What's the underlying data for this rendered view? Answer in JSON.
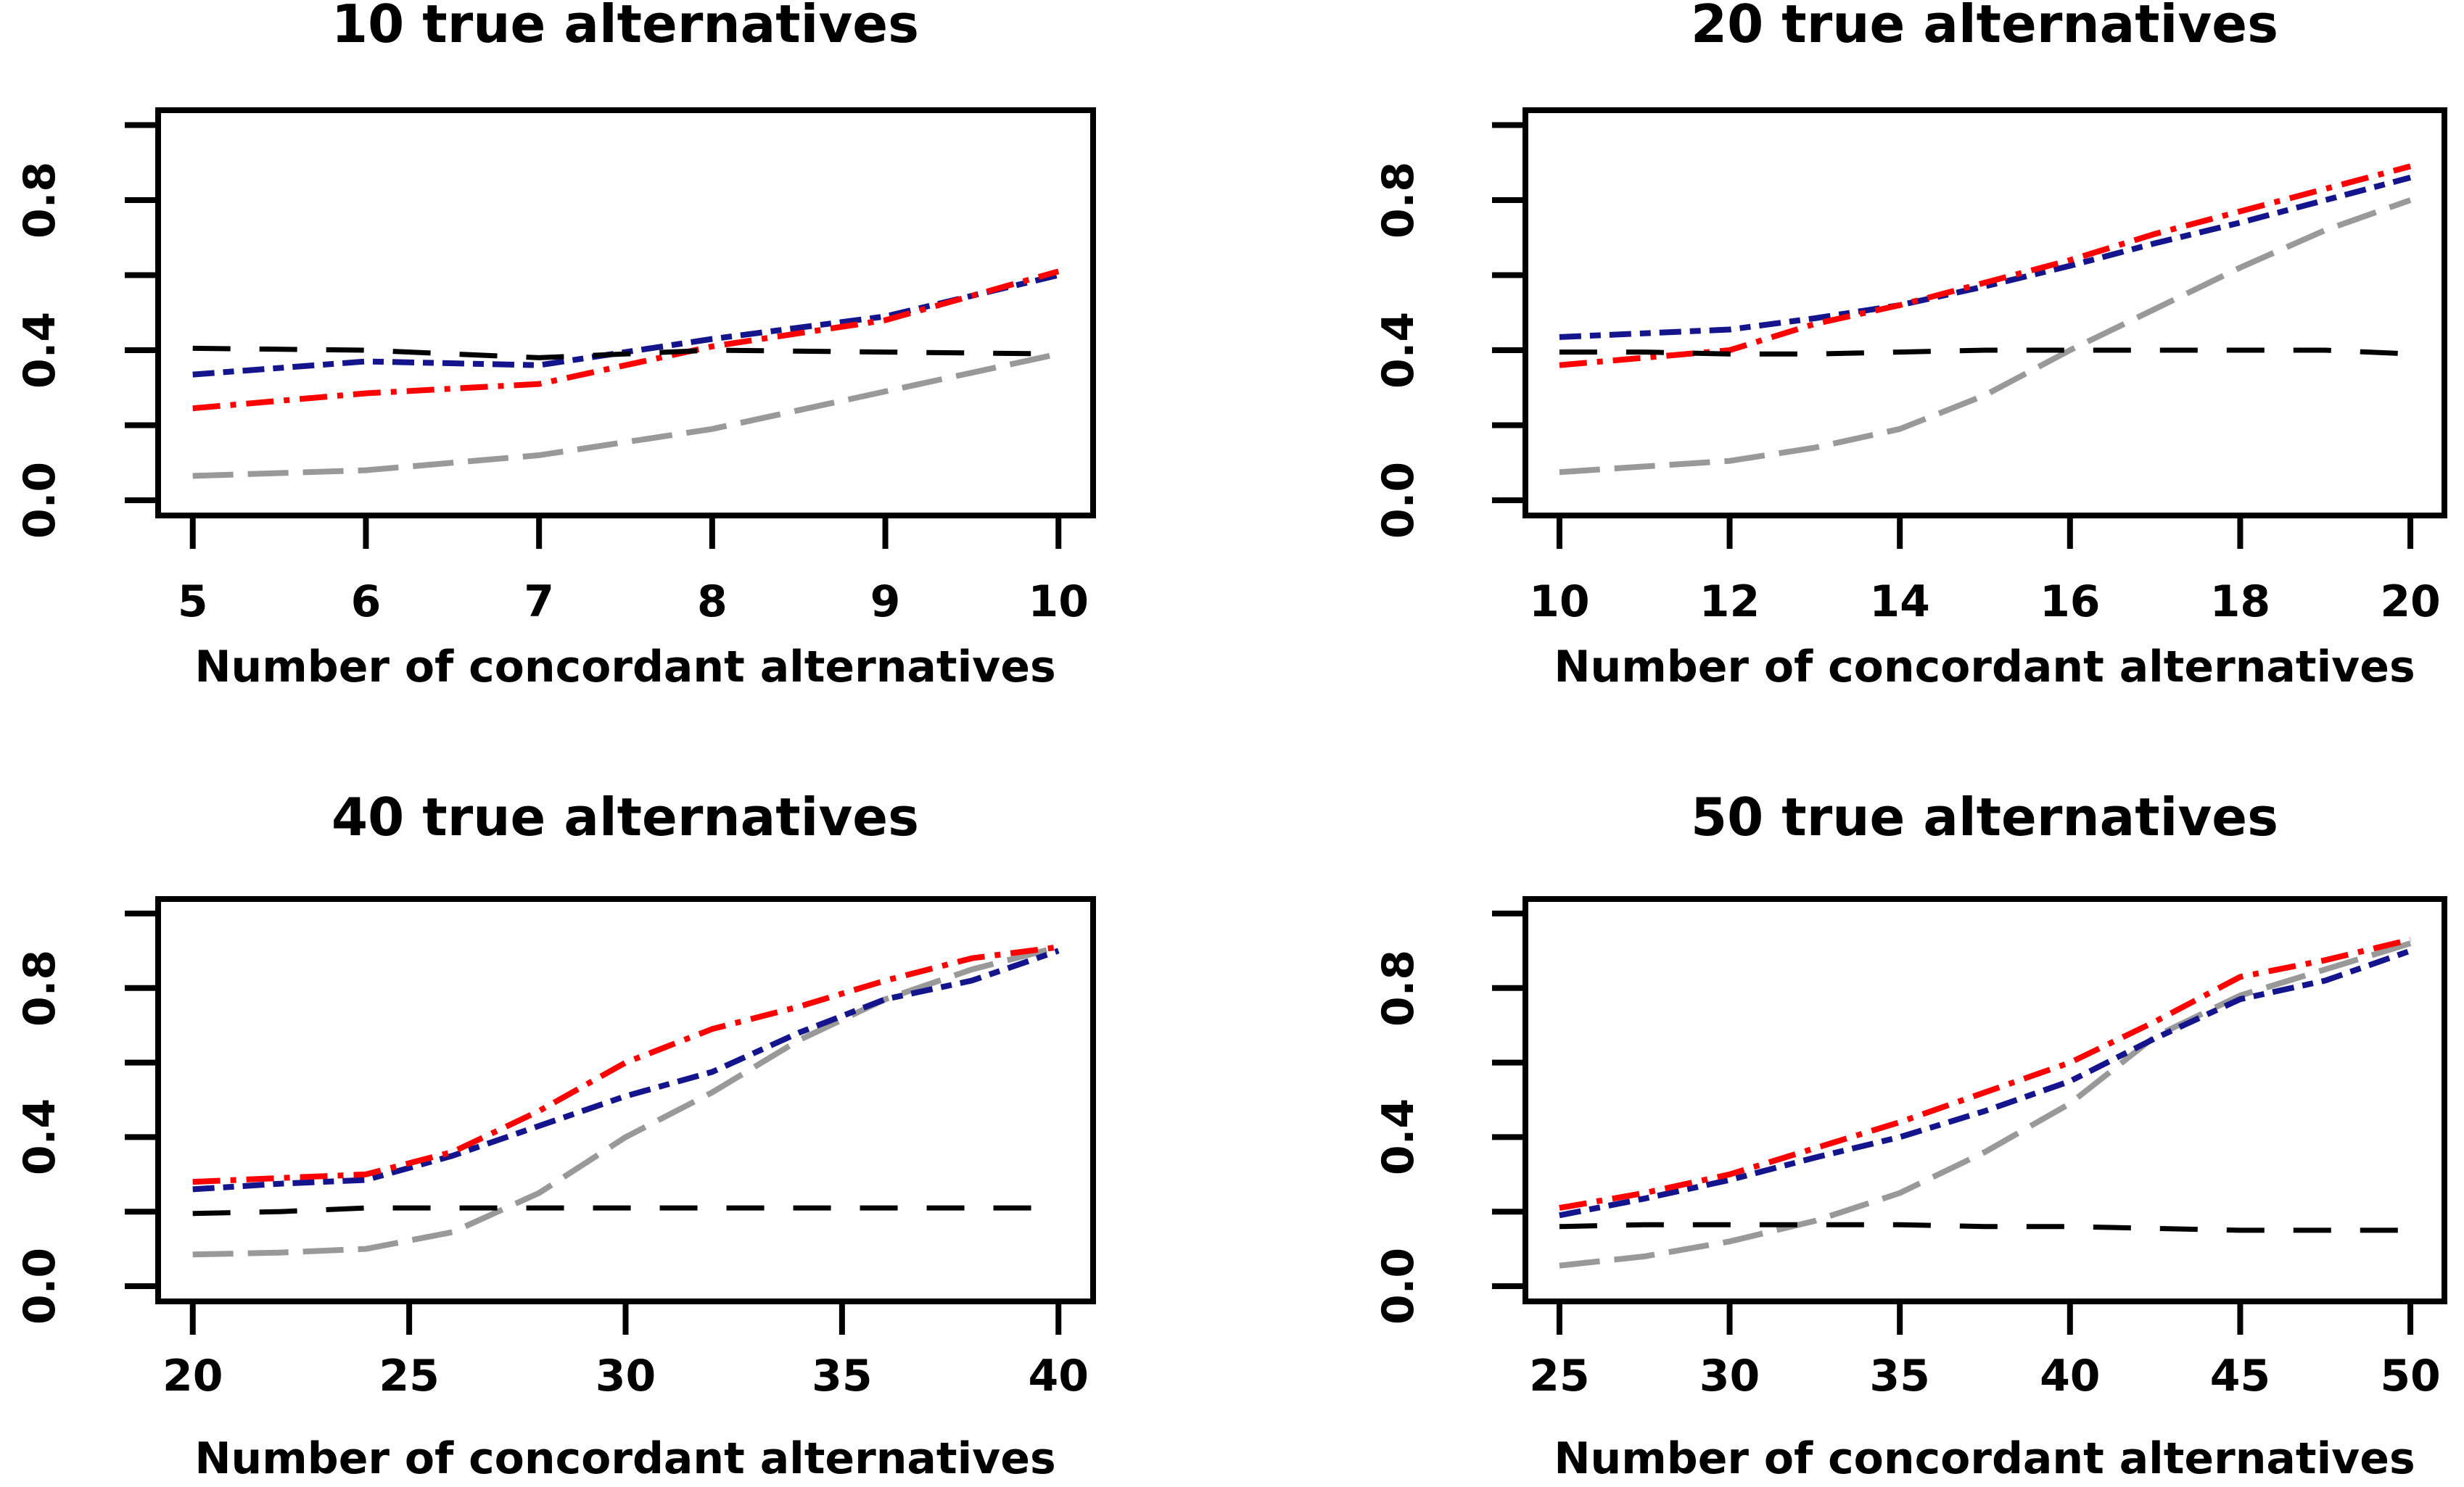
{
  "figure": {
    "background": "#FFFFFF",
    "x_axis_label": "Number of concordant alternatives",
    "y_tick_labels": [
      "0.0",
      "0.4",
      "0.8"
    ],
    "colors": {
      "red": "#FF0000",
      "navy": "#14148C",
      "gray": "#999999",
      "black": "#000000"
    }
  },
  "chart_data": [
    {
      "type": "line",
      "title": "10 true alternatives",
      "xlabel": "Number of concordant alternatives",
      "ylabel": "",
      "xlim": [
        5,
        10
      ],
      "ylim": [
        0,
        1
      ],
      "xticks": [
        5,
        6,
        7,
        8,
        9,
        10
      ],
      "yticks": [
        0,
        0.2,
        0.4,
        0.6,
        0.8,
        1.0
      ],
      "ytick_labels": [
        "0.0",
        "0.4",
        "0.8"
      ],
      "ytick_label_values": [
        0,
        0.4,
        0.8
      ],
      "grid": false,
      "legend": "none",
      "x": [
        5,
        6,
        7,
        8,
        9,
        10
      ],
      "series": [
        {
          "name": "gray-longdash",
          "color": "gray",
          "dash": "longdash",
          "values": [
            0.065,
            0.08,
            0.12,
            0.19,
            0.29,
            0.39
          ]
        },
        {
          "name": "navy-dashed",
          "color": "navy",
          "dash": "dashed",
          "values": [
            0.335,
            0.37,
            0.36,
            0.43,
            0.49,
            0.6
          ]
        },
        {
          "name": "red-dotdash",
          "color": "red",
          "dash": "dotdash",
          "values": [
            0.245,
            0.285,
            0.31,
            0.41,
            0.48,
            0.61
          ]
        },
        {
          "name": "black-dashed-baseline",
          "color": "black",
          "dash": "blackdash",
          "values": [
            0.405,
            0.4,
            0.38,
            0.4,
            0.395,
            0.39
          ]
        }
      ]
    },
    {
      "type": "line",
      "title": "20 true alternatives",
      "xlabel": "Number of concordant alternatives",
      "ylabel": "",
      "xlim": [
        10,
        20
      ],
      "ylim": [
        0,
        1
      ],
      "xticks": [
        10,
        12,
        14,
        16,
        18,
        20
      ],
      "yticks": [
        0,
        0.2,
        0.4,
        0.6,
        0.8,
        1.0
      ],
      "ytick_labels": [
        "0.0",
        "0.4",
        "0.8"
      ],
      "ytick_label_values": [
        0,
        0.4,
        0.8
      ],
      "grid": false,
      "legend": "none",
      "x": [
        10,
        11,
        12,
        13,
        14,
        15,
        16,
        17,
        18,
        19,
        20
      ],
      "series": [
        {
          "name": "gray-longdash",
          "color": "gray",
          "dash": "longdash",
          "values": [
            0.075,
            0.09,
            0.105,
            0.14,
            0.19,
            0.28,
            0.4,
            0.51,
            0.62,
            0.72,
            0.8
          ]
        },
        {
          "name": "navy-dashed",
          "color": "navy",
          "dash": "dashed",
          "values": [
            0.435,
            0.445,
            0.455,
            0.485,
            0.52,
            0.57,
            0.625,
            0.685,
            0.74,
            0.8,
            0.86
          ]
        },
        {
          "name": "red-dotdash",
          "color": "red",
          "dash": "dotdash",
          "values": [
            0.36,
            0.38,
            0.4,
            0.47,
            0.52,
            0.58,
            0.64,
            0.71,
            0.77,
            0.83,
            0.89
          ]
        },
        {
          "name": "black-dashed-baseline",
          "color": "black",
          "dash": "blackdash",
          "values": [
            0.395,
            0.395,
            0.39,
            0.39,
            0.395,
            0.4,
            0.4,
            0.4,
            0.4,
            0.4,
            0.39
          ]
        }
      ]
    },
    {
      "type": "line",
      "title": "40 true alternatives",
      "xlabel": "Number of concordant alternatives",
      "ylabel": "",
      "xlim": [
        20,
        40
      ],
      "ylim": [
        0,
        1
      ],
      "xticks": [
        20,
        25,
        30,
        35,
        40
      ],
      "yticks": [
        0,
        0.2,
        0.4,
        0.6,
        0.8,
        1.0
      ],
      "ytick_labels": [
        "0.0",
        "0.4",
        "0.8"
      ],
      "ytick_label_values": [
        0,
        0.4,
        0.8
      ],
      "grid": false,
      "legend": "none",
      "x": [
        20,
        22,
        24,
        26,
        28,
        30,
        32,
        34,
        36,
        38,
        40
      ],
      "series": [
        {
          "name": "gray-longdash",
          "color": "gray",
          "dash": "longdash",
          "values": [
            0.085,
            0.09,
            0.1,
            0.145,
            0.25,
            0.4,
            0.52,
            0.66,
            0.77,
            0.85,
            0.91
          ]
        },
        {
          "name": "navy-dashed",
          "color": "navy",
          "dash": "dashed",
          "values": [
            0.26,
            0.275,
            0.285,
            0.35,
            0.43,
            0.51,
            0.575,
            0.68,
            0.77,
            0.82,
            0.9
          ]
        },
        {
          "name": "red-dotdash",
          "color": "red",
          "dash": "dotdash",
          "values": [
            0.28,
            0.29,
            0.3,
            0.36,
            0.47,
            0.6,
            0.69,
            0.75,
            0.82,
            0.88,
            0.91
          ]
        },
        {
          "name": "black-dashed-baseline",
          "color": "black",
          "dash": "blackdash",
          "values": [
            0.195,
            0.2,
            0.21,
            0.21,
            0.21,
            0.21,
            0.21,
            0.21,
            0.21,
            0.21,
            0.21
          ]
        }
      ]
    },
    {
      "type": "line",
      "title": "50 true alternatives",
      "xlabel": "Number of concordant alternatives",
      "ylabel": "",
      "xlim": [
        25,
        50
      ],
      "ylim": [
        0,
        1
      ],
      "xticks": [
        25,
        30,
        35,
        40,
        45,
        50
      ],
      "yticks": [
        0,
        0.2,
        0.4,
        0.6,
        0.8,
        1.0
      ],
      "ytick_labels": [
        "0.0",
        "0.4",
        "0.8"
      ],
      "ytick_label_values": [
        0,
        0.4,
        0.8
      ],
      "grid": false,
      "legend": "none",
      "x": [
        25,
        27.5,
        30,
        32.5,
        35,
        37.5,
        40,
        42.5,
        45,
        47.5,
        50
      ],
      "series": [
        {
          "name": "gray-longdash",
          "color": "gray",
          "dash": "longdash",
          "values": [
            0.055,
            0.08,
            0.12,
            0.175,
            0.25,
            0.36,
            0.49,
            0.67,
            0.78,
            0.85,
            0.92
          ]
        },
        {
          "name": "navy-dashed",
          "color": "navy",
          "dash": "dashed",
          "values": [
            0.19,
            0.235,
            0.285,
            0.345,
            0.4,
            0.47,
            0.55,
            0.665,
            0.77,
            0.82,
            0.9
          ]
        },
        {
          "name": "red-dotdash",
          "color": "red",
          "dash": "dotdash",
          "values": [
            0.21,
            0.25,
            0.3,
            0.37,
            0.44,
            0.52,
            0.6,
            0.71,
            0.83,
            0.875,
            0.93
          ]
        },
        {
          "name": "black-dashed-baseline",
          "color": "black",
          "dash": "blackdash",
          "values": [
            0.16,
            0.165,
            0.165,
            0.165,
            0.165,
            0.16,
            0.16,
            0.155,
            0.15,
            0.15,
            0.15
          ]
        }
      ]
    }
  ]
}
